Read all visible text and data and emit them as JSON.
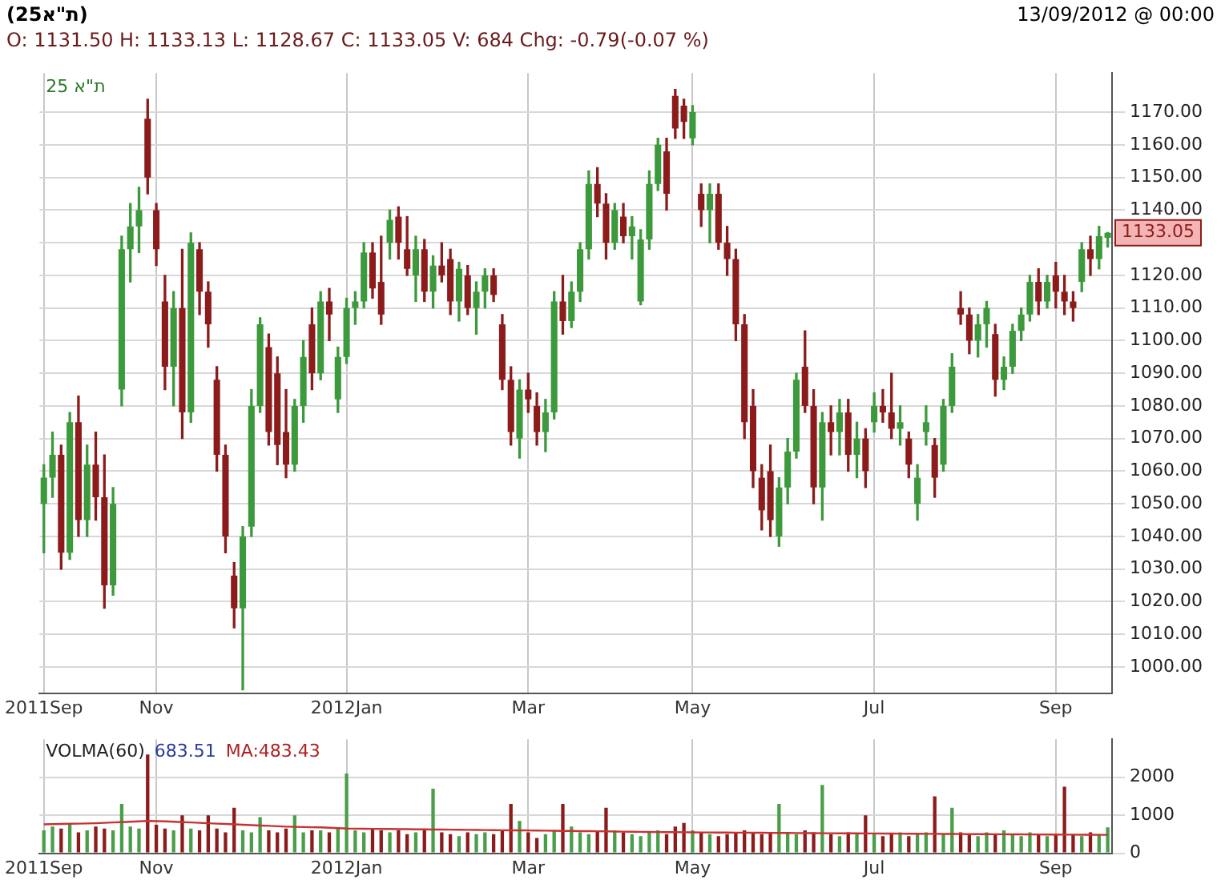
{
  "chart_data": [
    {
      "type": "candlestick",
      "title": "(ת\"א25)",
      "annotations": [
        "O: 1131.50 H: 1133.13 L: 1128.67 C: 1133.05 V: 684 Chg: -0.79(-0.07 %)",
        "13/09/2012 @ 00:00",
        "ת\"א 25",
        "1133.05"
      ],
      "categories": [
        "2011Sep",
        null,
        null,
        null,
        null,
        null,
        null,
        null,
        null,
        null,
        null,
        null,
        null,
        "Nov",
        null,
        null,
        null,
        null,
        null,
        null,
        null,
        null,
        null,
        null,
        null,
        null,
        null,
        null,
        null,
        null,
        null,
        null,
        null,
        null,
        null,
        "2012Jan",
        null,
        null,
        null,
        null,
        null,
        null,
        null,
        null,
        null,
        null,
        null,
        null,
        null,
        null,
        null,
        null,
        null,
        null,
        null,
        null,
        "Mar",
        null,
        null,
        null,
        null,
        null,
        null,
        null,
        null,
        null,
        null,
        null,
        null,
        null,
        null,
        null,
        null,
        null,
        null,
        "May",
        null,
        null,
        null,
        null,
        null,
        null,
        null,
        null,
        null,
        null,
        null,
        null,
        null,
        null,
        null,
        null,
        null,
        null,
        null,
        null,
        "Jul",
        null,
        null,
        null,
        null,
        null,
        null,
        null,
        null,
        null,
        null,
        null,
        null,
        null,
        null,
        null,
        null,
        null,
        null,
        null,
        null,
        "Sep",
        null,
        null,
        null,
        null,
        null,
        null
      ],
      "ohlc": [
        [
          1050,
          1062,
          1035,
          1058
        ],
        [
          1058,
          1072,
          1052,
          1065
        ],
        [
          1065,
          1068,
          1030,
          1035
        ],
        [
          1035,
          1078,
          1033,
          1075
        ],
        [
          1075,
          1083,
          1040,
          1045
        ],
        [
          1045,
          1068,
          1040,
          1062
        ],
        [
          1062,
          1072,
          1045,
          1052
        ],
        [
          1052,
          1065,
          1018,
          1025
        ],
        [
          1025,
          1055,
          1022,
          1050
        ],
        [
          1085,
          1132,
          1080,
          1128
        ],
        [
          1128,
          1142,
          1118,
          1135
        ],
        [
          1135,
          1147,
          1127,
          1140
        ],
        [
          1168,
          1174,
          1145,
          1150
        ],
        [
          1140,
          1142,
          1123,
          1128
        ],
        [
          1112,
          1120,
          1085,
          1092
        ],
        [
          1092,
          1115,
          1080,
          1110
        ],
        [
          1110,
          1128,
          1070,
          1078
        ],
        [
          1078,
          1133,
          1075,
          1130
        ],
        [
          1128,
          1130,
          1108,
          1115
        ],
        [
          1115,
          1118,
          1098,
          1105
        ],
        [
          1088,
          1092,
          1060,
          1065
        ],
        [
          1065,
          1068,
          1035,
          1040
        ],
        [
          1028,
          1032,
          1012,
          1018
        ],
        [
          1018,
          1043,
          993,
          1040
        ],
        [
          1043,
          1085,
          1040,
          1080
        ],
        [
          1080,
          1107,
          1078,
          1105
        ],
        [
          1098,
          1102,
          1068,
          1072
        ],
        [
          1090,
          1095,
          1062,
          1068
        ],
        [
          1072,
          1085,
          1058,
          1062
        ],
        [
          1062,
          1082,
          1060,
          1080
        ],
        [
          1080,
          1100,
          1075,
          1095
        ],
        [
          1105,
          1110,
          1085,
          1090
        ],
        [
          1090,
          1115,
          1088,
          1112
        ],
        [
          1112,
          1116,
          1100,
          1108
        ],
        [
          1082,
          1098,
          1078,
          1095
        ],
        [
          1095,
          1113,
          1093,
          1110
        ],
        [
          1110,
          1115,
          1105,
          1112
        ],
        [
          1112,
          1130,
          1110,
          1127
        ],
        [
          1127,
          1130,
          1113,
          1116
        ],
        [
          1118,
          1132,
          1105,
          1108
        ],
        [
          1130,
          1140,
          1125,
          1137
        ],
        [
          1138,
          1141,
          1125,
          1130
        ],
        [
          1128,
          1138,
          1120,
          1122
        ],
        [
          1120,
          1132,
          1112,
          1128
        ],
        [
          1128,
          1131,
          1112,
          1115
        ],
        [
          1115,
          1126,
          1110,
          1123
        ],
        [
          1123,
          1130,
          1118,
          1120
        ],
        [
          1125,
          1128,
          1108,
          1112
        ],
        [
          1112,
          1124,
          1106,
          1122
        ],
        [
          1120,
          1123,
          1108,
          1110
        ],
        [
          1110,
          1118,
          1102,
          1115
        ],
        [
          1115,
          1122,
          1110,
          1120
        ],
        [
          1120,
          1122,
          1112,
          1114
        ],
        [
          1105,
          1108,
          1085,
          1088
        ],
        [
          1088,
          1092,
          1068,
          1072
        ],
        [
          1070,
          1088,
          1064,
          1085
        ],
        [
          1085,
          1090,
          1078,
          1082
        ],
        [
          1080,
          1084,
          1068,
          1072
        ],
        [
          1072,
          1082,
          1066,
          1078
        ],
        [
          1078,
          1115,
          1076,
          1112
        ],
        [
          1112,
          1120,
          1102,
          1106
        ],
        [
          1106,
          1118,
          1104,
          1115
        ],
        [
          1115,
          1130,
          1112,
          1128
        ],
        [
          1128,
          1152,
          1125,
          1148
        ],
        [
          1148,
          1153,
          1138,
          1142
        ],
        [
          1142,
          1145,
          1125,
          1130
        ],
        [
          1130,
          1142,
          1128,
          1140
        ],
        [
          1138,
          1142,
          1130,
          1132
        ],
        [
          1132,
          1138,
          1125,
          1135
        ],
        [
          1112,
          1134,
          1111,
          1131
        ],
        [
          1131,
          1152,
          1128,
          1148
        ],
        [
          1148,
          1162,
          1146,
          1160
        ],
        [
          1158,
          1162,
          1140,
          1145
        ],
        [
          1175,
          1177,
          1162,
          1165
        ],
        [
          1172,
          1174,
          1162,
          1167
        ],
        [
          1162,
          1172,
          1160,
          1170
        ],
        [
          1145,
          1148,
          1135,
          1140
        ],
        [
          1140,
          1148,
          1130,
          1145
        ],
        [
          1145,
          1148,
          1128,
          1130
        ],
        [
          1130,
          1135,
          1120,
          1125
        ],
        [
          1125,
          1128,
          1100,
          1105
        ],
        [
          1105,
          1108,
          1070,
          1075
        ],
        [
          1080,
          1085,
          1055,
          1060
        ],
        [
          1058,
          1062,
          1042,
          1048
        ],
        [
          1060,
          1068,
          1040,
          1045
        ],
        [
          1040,
          1058,
          1037,
          1055
        ],
        [
          1055,
          1070,
          1050,
          1066
        ],
        [
          1066,
          1090,
          1064,
          1088
        ],
        [
          1092,
          1103,
          1078,
          1080
        ],
        [
          1080,
          1085,
          1050,
          1055
        ],
        [
          1055,
          1078,
          1045,
          1075
        ],
        [
          1075,
          1080,
          1065,
          1072
        ],
        [
          1072,
          1082,
          1065,
          1078
        ],
        [
          1078,
          1082,
          1060,
          1065
        ],
        [
          1065,
          1075,
          1058,
          1070
        ],
        [
          1070,
          1073,
          1055,
          1060
        ],
        [
          1075,
          1084,
          1072,
          1080
        ],
        [
          1080,
          1085,
          1075,
          1078
        ],
        [
          1078,
          1090,
          1070,
          1073
        ],
        [
          1073,
          1080,
          1068,
          1075
        ],
        [
          1070,
          1072,
          1058,
          1062
        ],
        [
          1050,
          1062,
          1045,
          1058
        ],
        [
          1072,
          1080,
          1068,
          1075
        ],
        [
          1068,
          1070,
          1052,
          1058
        ],
        [
          1062,
          1082,
          1060,
          1080
        ],
        [
          1080,
          1096,
          1078,
          1092
        ],
        [
          1110,
          1115,
          1105,
          1108
        ],
        [
          1108,
          1110,
          1096,
          1100
        ],
        [
          1100,
          1108,
          1095,
          1105
        ],
        [
          1105,
          1112,
          1098,
          1110
        ],
        [
          1102,
          1105,
          1083,
          1088
        ],
        [
          1088,
          1095,
          1085,
          1092
        ],
        [
          1092,
          1105,
          1090,
          1103
        ],
        [
          1103,
          1110,
          1100,
          1108
        ],
        [
          1108,
          1120,
          1106,
          1118
        ],
        [
          1118,
          1122,
          1108,
          1112
        ],
        [
          1112,
          1120,
          1110,
          1118
        ],
        [
          1120,
          1124,
          1110,
          1115
        ],
        [
          1115,
          1120,
          1108,
          1112
        ],
        [
          1112,
          1115,
          1106,
          1110
        ],
        [
          1118,
          1130,
          1115,
          1128
        ],
        [
          1128,
          1132,
          1120,
          1125
        ],
        [
          1125,
          1135,
          1122,
          1132
        ],
        [
          1131.5,
          1133.13,
          1128.67,
          1133.05
        ]
      ],
      "ylim": [
        992,
        1182
      ],
      "yticks": [
        {
          "value": 1000,
          "label": "1000.00"
        },
        {
          "value": 1010,
          "label": "1010.00"
        },
        {
          "value": 1020,
          "label": "1020.00"
        },
        {
          "value": 1030,
          "label": "1030.00"
        },
        {
          "value": 1040,
          "label": "1040.00"
        },
        {
          "value": 1050,
          "label": "1050.00"
        },
        {
          "value": 1060,
          "label": "1060.00"
        },
        {
          "value": 1070,
          "label": "1070.00"
        },
        {
          "value": 1080,
          "label": "1080.00"
        },
        {
          "value": 1090,
          "label": "1090.00"
        },
        {
          "value": 1100,
          "label": "1100.00"
        },
        {
          "value": 1110,
          "label": "1110.00"
        },
        {
          "value": 1120,
          "label": "1120.00"
        },
        {
          "value": 1130,
          "label": null
        },
        {
          "value": 1140,
          "label": "1140.00"
        },
        {
          "value": 1150,
          "label": "1150.00"
        },
        {
          "value": 1160,
          "label": "1160.00"
        },
        {
          "value": 1170,
          "label": "1170.00"
        }
      ],
      "grid": true,
      "legend": false
    },
    {
      "type": "bar",
      "annotations": [
        "VOLMA(60)",
        "683.51",
        "MA:483.43"
      ],
      "categories": [
        "2011Sep",
        null,
        null,
        null,
        null,
        null,
        null,
        null,
        null,
        null,
        null,
        null,
        null,
        "Nov",
        null,
        null,
        null,
        null,
        null,
        null,
        null,
        null,
        null,
        null,
        null,
        null,
        null,
        null,
        null,
        null,
        null,
        null,
        null,
        null,
        null,
        "2012Jan",
        null,
        null,
        null,
        null,
        null,
        null,
        null,
        null,
        null,
        null,
        null,
        null,
        null,
        null,
        null,
        null,
        null,
        null,
        null,
        null,
        "Mar",
        null,
        null,
        null,
        null,
        null,
        null,
        null,
        null,
        null,
        null,
        null,
        null,
        null,
        null,
        null,
        null,
        null,
        null,
        "May",
        null,
        null,
        null,
        null,
        null,
        null,
        null,
        null,
        null,
        null,
        null,
        null,
        null,
        null,
        null,
        null,
        null,
        null,
        null,
        null,
        "Jul",
        null,
        null,
        null,
        null,
        null,
        null,
        null,
        null,
        null,
        null,
        null,
        null,
        null,
        null,
        null,
        null,
        null,
        null,
        null,
        null,
        "Sep",
        null,
        null,
        null,
        null,
        null,
        null
      ],
      "series": [
        {
          "type": "bar",
          "colors": [
            "#4a9e4a",
            "#4a9e4a",
            "#8c1c1c",
            "#4a9e4a",
            "#8c1c1c",
            "#4a9e4a",
            "#8c1c1c",
            "#8c1c1c",
            "#4a9e4a",
            "#4a9e4a",
            "#4a9e4a",
            "#4a9e4a",
            "#8c1c1c",
            "#8c1c1c",
            "#8c1c1c",
            "#4a9e4a",
            "#8c1c1c",
            "#4a9e4a",
            "#8c1c1c",
            "#8c1c1c",
            "#8c1c1c",
            "#8c1c1c",
            "#8c1c1c",
            "#4a9e4a",
            "#4a9e4a",
            "#4a9e4a",
            "#8c1c1c",
            "#8c1c1c",
            "#8c1c1c",
            "#4a9e4a",
            "#4a9e4a",
            "#8c1c1c",
            "#4a9e4a",
            "#8c1c1c",
            "#4a9e4a",
            "#4a9e4a",
            "#4a9e4a",
            "#4a9e4a",
            "#8c1c1c",
            "#8c1c1c",
            "#4a9e4a",
            "#8c1c1c",
            "#8c1c1c",
            "#4a9e4a",
            "#8c1c1c",
            "#4a9e4a",
            "#8c1c1c",
            "#8c1c1c",
            "#4a9e4a",
            "#8c1c1c",
            "#4a9e4a",
            "#4a9e4a",
            "#8c1c1c",
            "#8c1c1c",
            "#8c1c1c",
            "#4a9e4a",
            "#8c1c1c",
            "#8c1c1c",
            "#4a9e4a",
            "#4a9e4a",
            "#8c1c1c",
            "#4a9e4a",
            "#4a9e4a",
            "#4a9e4a",
            "#8c1c1c",
            "#8c1c1c",
            "#4a9e4a",
            "#8c1c1c",
            "#4a9e4a",
            "#4a9e4a",
            "#4a9e4a",
            "#4a9e4a",
            "#8c1c1c",
            "#8c1c1c",
            "#8c1c1c",
            "#4a9e4a",
            "#8c1c1c",
            "#4a9e4a",
            "#8c1c1c",
            "#8c1c1c",
            "#8c1c1c",
            "#8c1c1c",
            "#8c1c1c",
            "#8c1c1c",
            "#8c1c1c",
            "#4a9e4a",
            "#4a9e4a",
            "#4a9e4a",
            "#8c1c1c",
            "#8c1c1c",
            "#4a9e4a",
            "#8c1c1c",
            "#4a9e4a",
            "#8c1c1c",
            "#4a9e4a",
            "#8c1c1c",
            "#4a9e4a",
            "#8c1c1c",
            "#8c1c1c",
            "#4a9e4a",
            "#8c1c1c",
            "#4a9e4a",
            "#4a9e4a",
            "#8c1c1c",
            "#4a9e4a",
            "#4a9e4a",
            "#8c1c1c",
            "#8c1c1c",
            "#4a9e4a",
            "#4a9e4a",
            "#8c1c1c",
            "#4a9e4a",
            "#4a9e4a",
            "#4a9e4a",
            "#4a9e4a",
            "#8c1c1c",
            "#4a9e4a",
            "#8c1c1c",
            "#8c1c1c",
            "#8c1c1c",
            "#4a9e4a",
            "#8c1c1c",
            "#4a9e4a",
            "#4a9e4a"
          ],
          "values": [
            600,
            700,
            650,
            750,
            550,
            600,
            700,
            650,
            600,
            1300,
            700,
            650,
            2600,
            750,
            650,
            600,
            1000,
            650,
            600,
            1000,
            650,
            550,
            1200,
            600,
            550,
            950,
            600,
            550,
            650,
            1000,
            550,
            600,
            600,
            550,
            650,
            2100,
            600,
            550,
            650,
            600,
            550,
            600,
            500,
            550,
            600,
            1700,
            550,
            500,
            450,
            550,
            500,
            550,
            500,
            600,
            1300,
            850,
            550,
            400,
            500,
            600,
            1300,
            700,
            550,
            500,
            600,
            1200,
            600,
            550,
            500,
            450,
            550,
            600,
            500,
            700,
            800,
            600,
            550,
            500,
            450,
            500,
            550,
            600,
            550,
            500,
            550,
            1300,
            550,
            500,
            600,
            550,
            1800,
            500,
            450,
            550,
            500,
            1000,
            500,
            450,
            500,
            550,
            450,
            500,
            550,
            1500,
            500,
            1200,
            550,
            500,
            450,
            550,
            500,
            600,
            500,
            450,
            550,
            500,
            450,
            500,
            1750,
            500,
            450,
            550,
            500,
            684
          ]
        },
        {
          "type": "line",
          "color": "#c83232",
          "values": [
            760,
            765,
            770,
            775,
            780,
            785,
            790,
            800,
            810,
            820,
            830,
            840,
            850,
            845,
            840,
            830,
            820,
            810,
            800,
            790,
            780,
            770,
            760,
            750,
            740,
            730,
            720,
            710,
            700,
            695,
            690,
            685,
            680,
            670,
            660,
            650,
            648,
            645,
            643,
            640,
            638,
            635,
            633,
            630,
            628,
            625,
            623,
            620,
            618,
            615,
            613,
            610,
            608,
            606,
            604,
            602,
            600,
            597,
            594,
            591,
            588,
            586,
            583,
            580,
            578,
            575,
            572,
            569,
            566,
            563,
            561,
            558,
            556,
            554,
            552,
            550,
            548,
            547,
            545,
            544,
            542,
            541,
            539,
            538,
            536,
            535,
            533,
            532,
            530,
            529,
            527,
            526,
            525,
            524,
            522,
            521,
            520,
            519,
            517,
            516,
            514,
            513,
            511,
            510,
            508,
            507,
            505,
            504,
            503,
            501,
            500,
            499,
            497,
            496,
            495,
            494,
            492,
            491,
            490,
            489,
            487,
            486,
            485,
            483.43
          ]
        }
      ],
      "ylim": [
        0,
        3000
      ],
      "yticks": [
        0,
        1000,
        2000
      ],
      "grid": true,
      "legend": false
    }
  ]
}
